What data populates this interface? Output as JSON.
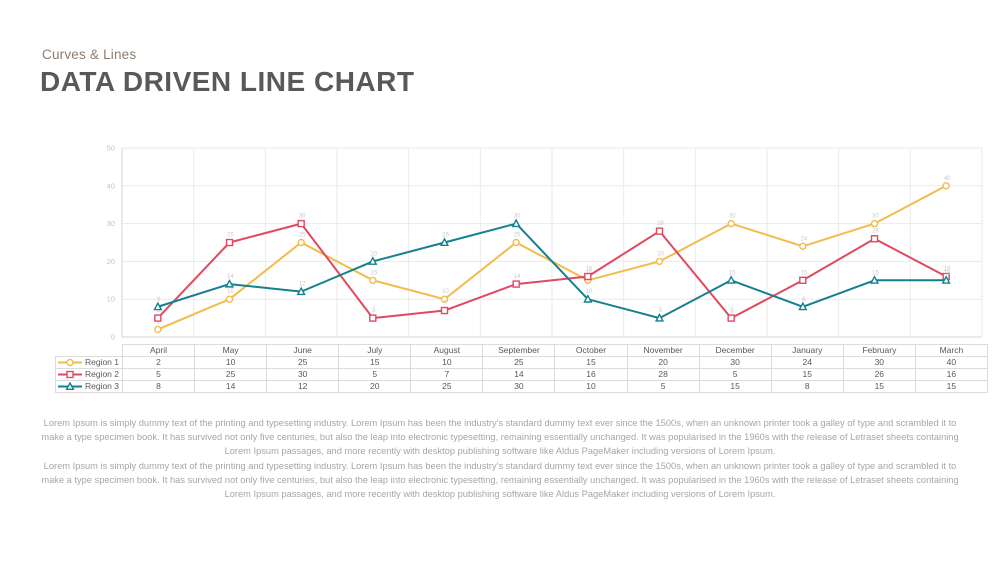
{
  "header": {
    "kicker": "Curves & Lines",
    "title": "DATA DRIVEN LINE CHART"
  },
  "chart_data": {
    "type": "line",
    "categories": [
      "April",
      "May",
      "June",
      "July",
      "August",
      "September",
      "October",
      "November",
      "December",
      "January",
      "February",
      "March"
    ],
    "series": [
      {
        "name": "Region 1",
        "values": [
          2,
          10,
          25,
          15,
          10,
          25,
          15,
          20,
          30,
          24,
          30,
          40
        ],
        "color": "#F1BC4B",
        "marker": "circle"
      },
      {
        "name": "Region 2",
        "values": [
          5,
          25,
          30,
          5,
          7,
          14,
          16,
          28,
          5,
          15,
          26,
          16
        ],
        "color": "#E04960",
        "marker": "square"
      },
      {
        "name": "Region 3",
        "values": [
          8,
          14,
          12,
          20,
          25,
          30,
          10,
          5,
          15,
          8,
          15,
          15
        ],
        "color": "#15808E",
        "marker": "triangle"
      }
    ],
    "title": "",
    "xlabel": "",
    "ylabel": "",
    "ylim": [
      0,
      50
    ],
    "yticks": [
      0,
      10,
      20,
      30,
      40,
      50
    ],
    "grid": true,
    "data_labels": true,
    "legend_position": "data-table-left"
  },
  "paragraphs": [
    "Lorem Ipsum is simply dummy text of the printing and typesetting industry. Lorem Ipsum has been the industry's standard dummy text ever since the 1500s, when an unknown printer took a galley of type and scrambled it to make a type specimen book. It has survived not only five centuries, but also the leap into electronic typesetting, remaining essentially unchanged. It was popularised in the 1960s with the release of Letraset sheets containing Lorem Ipsum passages, and more recently with desktop publishing software like Aldus PageMaker including versions of Lorem Ipsum.",
    "Lorem Ipsum is simply dummy text of the printing and typesetting industry. Lorem Ipsum has been the industry's standard dummy text ever since the 1500s, when an unknown printer took a galley of type and scrambled it to make a type specimen book. It has survived not only five centuries, but also the leap into electronic typesetting, remaining essentially unchanged. It was popularised in the 1960s with the release of Letraset sheets containing Lorem Ipsum passages, and more recently with desktop publishing software like Aldus PageMaker including versions of Lorem Ipsum."
  ],
  "colors": {
    "title_text": "#595959",
    "kicker_text": "#8c7d6e",
    "body_text": "#a6a6a6",
    "axis_label": "#c3c3c3",
    "gridline": "#eaeaea",
    "axis_line": "#d6d6d6",
    "data_label": "#c9c9c9",
    "table_border": "#dcdcdc",
    "table_text": "#595959",
    "background": "#ffffff"
  }
}
